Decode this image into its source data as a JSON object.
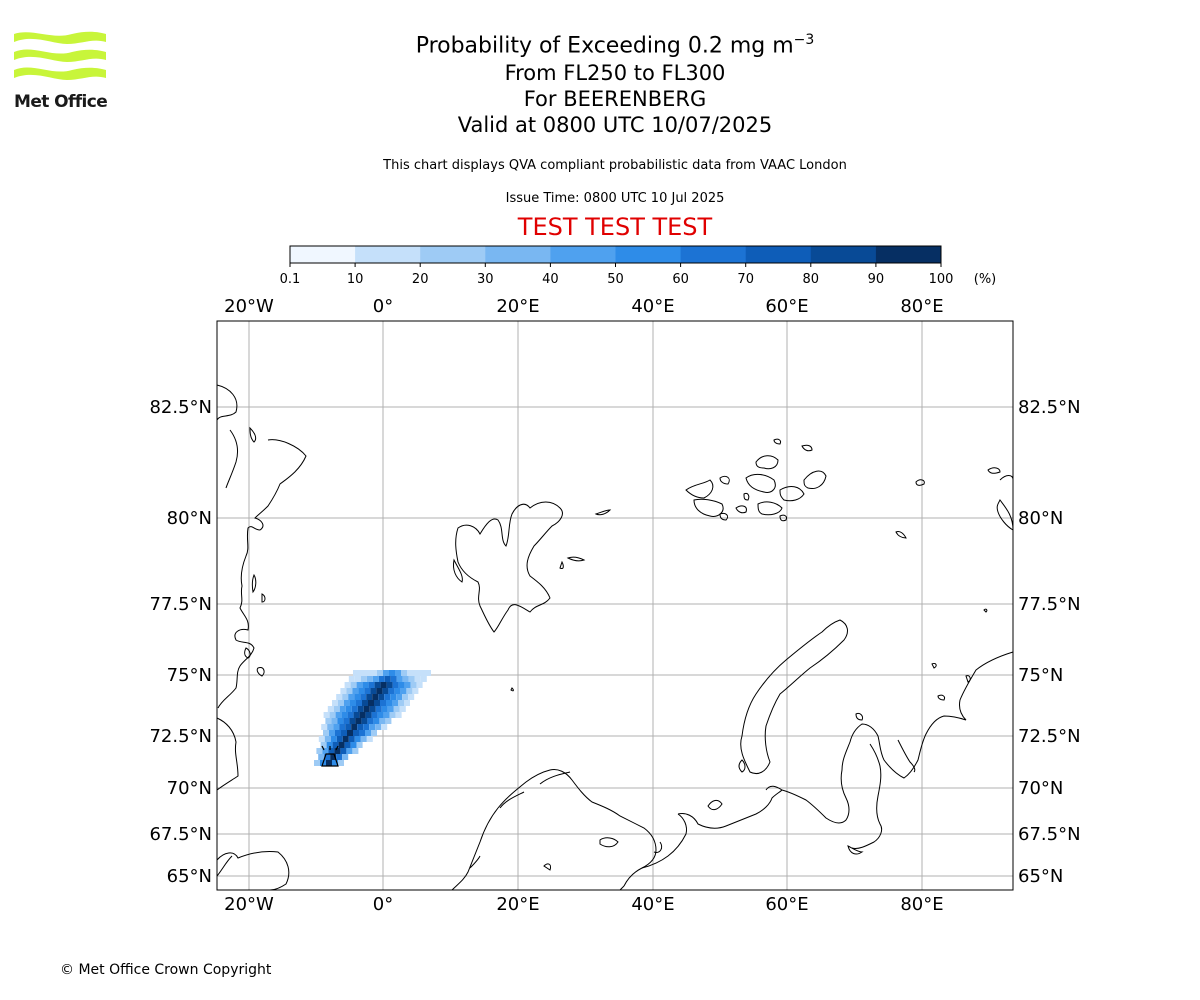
{
  "header": {
    "logo_text": "Met Office",
    "title_prefix": "Probability of Exceeding 0.2 mg m",
    "title_exponent": "−3",
    "level_range": "From FL250 to FL300",
    "volcano": "For BEERENBERG",
    "valid_time": "Valid at 0800 UTC 10/07/2025",
    "disclaimer": "This chart displays QVA compliant probabilistic data from VAAC London",
    "issue_time": "Issue Time: 0800 UTC 10 Jul 2025",
    "test_banner": "TEST TEST TEST"
  },
  "colorbar": {
    "ticks": [
      "0.1",
      "10",
      "20",
      "30",
      "40",
      "50",
      "60",
      "70",
      "80",
      "90",
      "100"
    ],
    "unit": "(%)",
    "colors": [
      "#f0f7ff",
      "#c5e0fa",
      "#9ecbf5",
      "#79b7f2",
      "#4fa1ef",
      "#2e8ce8",
      "#1c73d4",
      "#0e5db8",
      "#084a96",
      "#062f63"
    ]
  },
  "map": {
    "lon_labels": [
      "20°W",
      "0°",
      "20°E",
      "40°E",
      "60°E",
      "80°E"
    ],
    "lat_labels": [
      "82.5°N",
      "80°N",
      "77.5°N",
      "75°N",
      "72.5°N",
      "70°N",
      "67.5°N",
      "65°N"
    ],
    "plume_color_dark": "#062f63",
    "plume_color_light": "#c5e0fa",
    "coastline_color": "#000000",
    "grid_color": "#b0b0b0"
  },
  "footer": {
    "copyright": "© Met Office Crown Copyright"
  }
}
